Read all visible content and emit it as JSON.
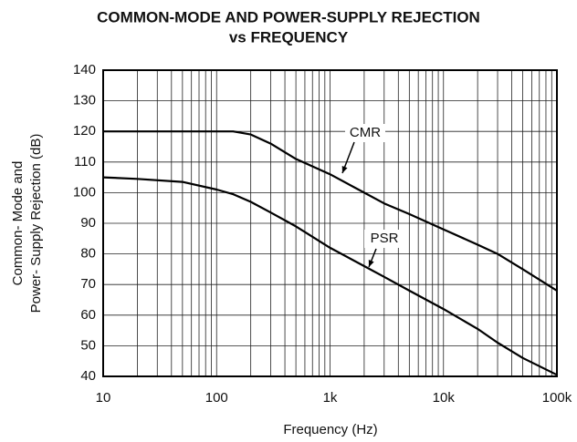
{
  "chart_data": {
    "type": "line",
    "title": [
      "COMMON-MODE AND POWER-SUPPLY REJECTION",
      "vs FREQUENCY"
    ],
    "ylabel": [
      "Common- Mode and",
      "Power- Supply Rejection (dB)"
    ],
    "xlabel": "Frequency (Hz)",
    "log_x": true,
    "grid": true,
    "minor_grid": true,
    "xlim": [
      10,
      100000
    ],
    "ylim": [
      40,
      140
    ],
    "xticks": [
      10,
      100,
      {
        "value": 1000,
        "label": "1k"
      },
      {
        "value": 10000,
        "label": "10k"
      },
      {
        "value": 100000,
        "label": "100k"
      }
    ],
    "yticks": [
      40,
      50,
      60,
      70,
      80,
      90,
      100,
      110,
      120,
      130,
      140
    ],
    "x": [
      10,
      20,
      50,
      100,
      140,
      200,
      300,
      500,
      1000,
      2000,
      3000,
      5000,
      10000,
      20000,
      30000,
      50000,
      100000
    ],
    "series": [
      {
        "name": "CMR",
        "color": "#000000",
        "values": [
          120,
          120,
          120,
          120,
          120,
          119,
          116,
          111,
          106,
          100,
          96.5,
          93,
          88,
          83,
          80,
          75,
          68
        ]
      },
      {
        "name": "PSR",
        "color": "#000000",
        "values": [
          105,
          104.5,
          103.5,
          101,
          99.5,
          97,
          93.5,
          89,
          82,
          76,
          72.5,
          68,
          62,
          55.5,
          51,
          46,
          40.5
        ]
      }
    ]
  }
}
